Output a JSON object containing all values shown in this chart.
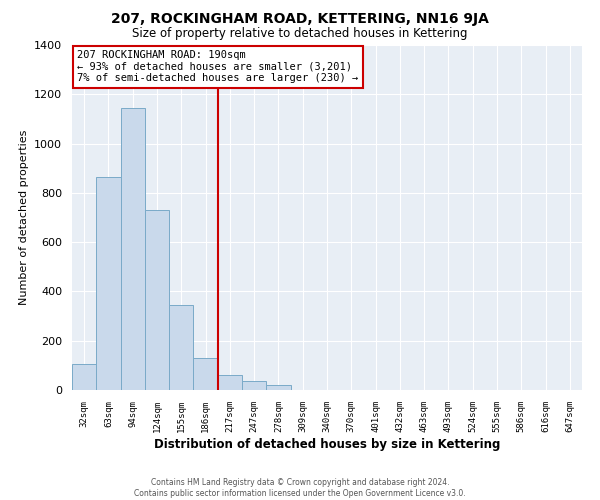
{
  "title": "207, ROCKINGHAM ROAD, KETTERING, NN16 9JA",
  "subtitle": "Size of property relative to detached houses in Kettering",
  "xlabel": "Distribution of detached houses by size in Kettering",
  "ylabel": "Number of detached properties",
  "bar_labels": [
    "32sqm",
    "63sqm",
    "94sqm",
    "124sqm",
    "155sqm",
    "186sqm",
    "217sqm",
    "247sqm",
    "278sqm",
    "309sqm",
    "340sqm",
    "370sqm",
    "401sqm",
    "432sqm",
    "463sqm",
    "493sqm",
    "524sqm",
    "555sqm",
    "586sqm",
    "616sqm",
    "647sqm"
  ],
  "bar_values": [
    105,
    865,
    1145,
    730,
    345,
    130,
    60,
    35,
    20,
    0,
    0,
    0,
    0,
    0,
    0,
    0,
    0,
    0,
    0,
    0,
    0
  ],
  "bar_color": "#c9d9eb",
  "bar_edge_color": "#7aaac8",
  "vline_x": 5.5,
  "vline_color": "#cc0000",
  "ylim": [
    0,
    1400
  ],
  "yticks": [
    0,
    200,
    400,
    600,
    800,
    1000,
    1200,
    1400
  ],
  "annotation_title": "207 ROCKINGHAM ROAD: 190sqm",
  "annotation_line1": "← 93% of detached houses are smaller (3,201)",
  "annotation_line2": "7% of semi-detached houses are larger (230) →",
  "annotation_box_color": "#ffffff",
  "annotation_box_edge": "#cc0000",
  "plot_bg_color": "#e8eef5",
  "grid_color": "#ffffff",
  "footer_line1": "Contains HM Land Registry data © Crown copyright and database right 2024.",
  "footer_line2": "Contains public sector information licensed under the Open Government Licence v3.0."
}
